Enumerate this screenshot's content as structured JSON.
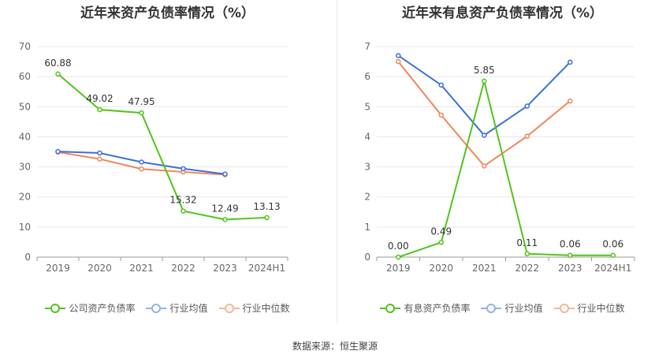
{
  "chart_data": [
    {
      "type": "line",
      "title": "近年来资产负债率情况（%）",
      "categories": [
        "2019",
        "2020",
        "2021",
        "2022",
        "2023",
        "2024H1"
      ],
      "ylim": [
        0,
        70
      ],
      "yticks": [
        0,
        10,
        20,
        30,
        40,
        50,
        60,
        70
      ],
      "grid": true,
      "legend_position": "bottom",
      "series": [
        {
          "name": "公司资产负债率",
          "color": "#52c41a",
          "labels": true,
          "values": [
            60.88,
            49.02,
            47.95,
            15.32,
            12.49,
            13.13
          ]
        },
        {
          "name": "行业均值",
          "color": "#3b6fd8",
          "labels": false,
          "values": [
            35.1,
            34.6,
            31.6,
            29.4,
            27.6,
            null
          ]
        },
        {
          "name": "行业中位数",
          "color": "#f0875a",
          "labels": false,
          "values": [
            34.9,
            32.6,
            29.3,
            28.3,
            27.4,
            null
          ]
        }
      ]
    },
    {
      "type": "line",
      "title": "近年来有息资产负债率情况（%）",
      "categories": [
        "2019",
        "2020",
        "2021",
        "2022",
        "2023",
        "2024H1"
      ],
      "ylim": [
        0,
        7
      ],
      "yticks": [
        0,
        1,
        2,
        3,
        4,
        5,
        6,
        7
      ],
      "grid": true,
      "legend_position": "bottom",
      "series": [
        {
          "name": "有息资产负债率",
          "color": "#52c41a",
          "labels": true,
          "values": [
            0.0,
            0.49,
            5.85,
            0.11,
            0.06,
            0.06
          ]
        },
        {
          "name": "行业均值",
          "color": "#3b6fd8",
          "labels": false,
          "values": [
            6.7,
            5.72,
            4.05,
            5.02,
            6.48,
            null
          ]
        },
        {
          "name": "行业中位数",
          "color": "#f0875a",
          "labels": false,
          "values": [
            6.5,
            4.72,
            3.03,
            4.02,
            5.19,
            null
          ]
        }
      ]
    }
  ],
  "legend_colors": {
    "company": "#52c41a",
    "mean": "#8fb3f0",
    "median": "#f5b59a"
  },
  "footer": {
    "source": "数据来源：恒生聚源"
  }
}
